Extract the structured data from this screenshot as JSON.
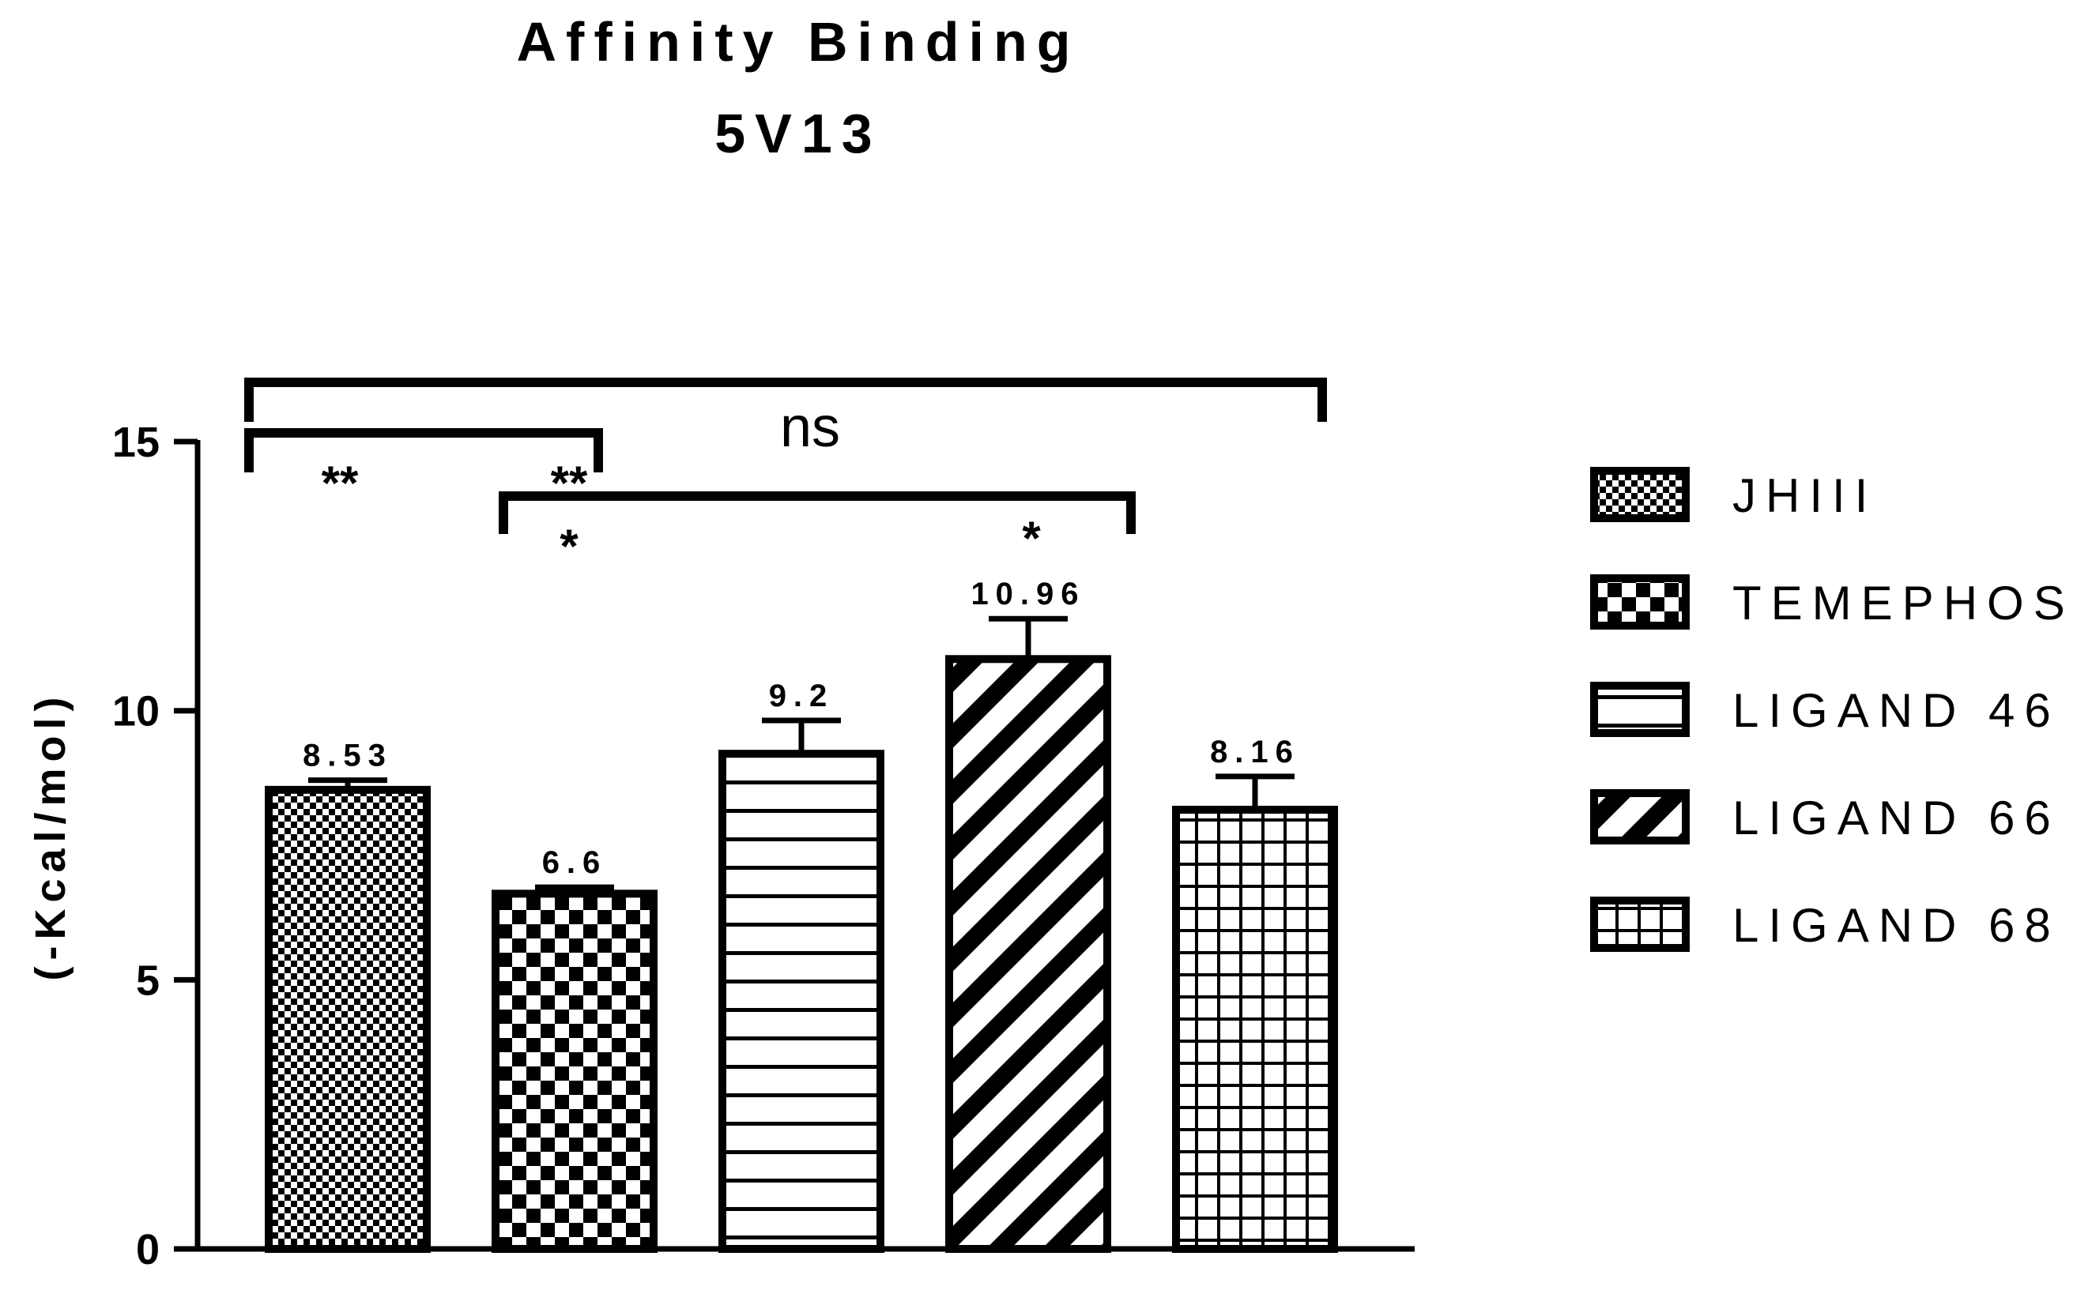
{
  "chart_data": {
    "type": "bar",
    "title": [
      "Affinity Binding",
      "5V13"
    ],
    "ylabel": "(-Kcal/mol)",
    "xlabel": "",
    "ylim": [
      0,
      15
    ],
    "yticks": [
      0,
      5,
      10,
      15
    ],
    "categories": [
      "JHIII",
      "TEMEPHOS",
      "LIGAND 46",
      "LIGAND 66",
      "LIGAND 68"
    ],
    "values": [
      8.53,
      6.6,
      9.2,
      10.96,
      8.16
    ],
    "value_labels": [
      "8.53",
      "6.6",
      "9.2",
      "10.96",
      "8.16"
    ],
    "errors": [
      0.18,
      0.12,
      0.62,
      0.75,
      0.62
    ],
    "patterns": [
      "fine-checker",
      "checker",
      "horizontal-lines",
      "diagonal-stripes",
      "grid"
    ],
    "legend_position": "right",
    "grid": false,
    "significance": [
      {
        "from": 0,
        "to": 4,
        "label": "ns"
      },
      {
        "from": 0,
        "to": 1,
        "labels": [
          "**",
          "**"
        ]
      },
      {
        "from": 1,
        "to": 3,
        "labels": [
          "*",
          "*"
        ]
      }
    ]
  }
}
